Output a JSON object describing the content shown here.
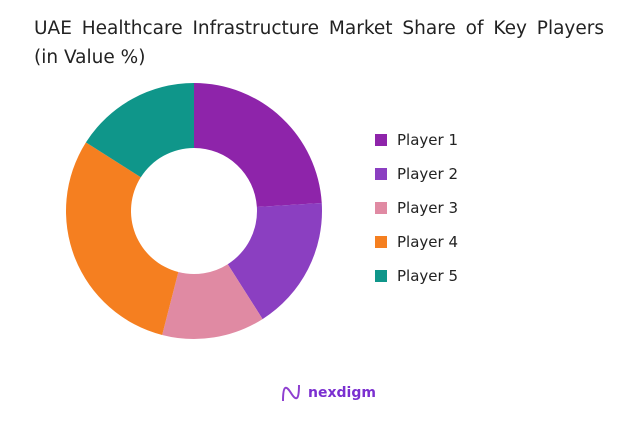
{
  "chart_data": {
    "type": "pie",
    "donut": true,
    "title": "UAE Healthcare Infrastructure Market Share of Key Players (in Value %)",
    "categories": [
      "Player 1",
      "Player 2",
      "Player 3",
      "Player 4",
      "Player 5"
    ],
    "values": [
      24,
      17,
      13,
      30,
      16
    ],
    "colors": [
      "#8e24aa",
      "#8b3fc1",
      "#e08aa3",
      "#f57f20",
      "#0f968a"
    ],
    "legend": "right"
  },
  "brand": {
    "logo_text": "nexdigm"
  }
}
